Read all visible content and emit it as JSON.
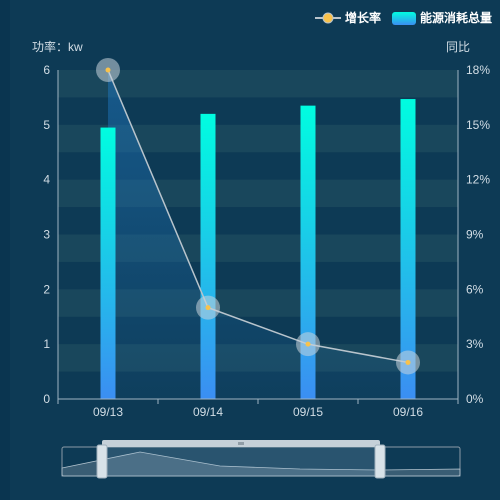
{
  "chart_data": {
    "type": "bar",
    "categories": [
      "09/13",
      "09/14",
      "09/15",
      "09/16"
    ],
    "series": [
      {
        "name": "能源消耗总量",
        "type": "bar",
        "axis": "left",
        "values": [
          4.95,
          5.2,
          5.35,
          5.47
        ]
      },
      {
        "name": "增长率",
        "type": "line",
        "axis": "right",
        "values": [
          18,
          5,
          3,
          2
        ]
      }
    ],
    "yAxisLeft": {
      "label": "功率：kw",
      "min": 0,
      "max": 6,
      "ticks": [
        "0",
        "1",
        "2",
        "3",
        "4",
        "5",
        "6"
      ]
    },
    "yAxisRight": {
      "label": "同比",
      "min": 0,
      "max": 18,
      "ticks": [
        "0%",
        "3%",
        "6%",
        "9%",
        "12%",
        "15%",
        "18%"
      ]
    },
    "legend": {
      "placement": "top-right"
    },
    "colors": {
      "bar_top": "#00fde0",
      "bar_bottom": "#3b8ef2",
      "line": "#b8c4cc",
      "point": "#f8c24c",
      "legend_line_dot": "#f8c24c",
      "stripe": "#1c4a5e"
    },
    "dataZoom": {
      "visible": true,
      "start": 0,
      "end": 80
    }
  }
}
